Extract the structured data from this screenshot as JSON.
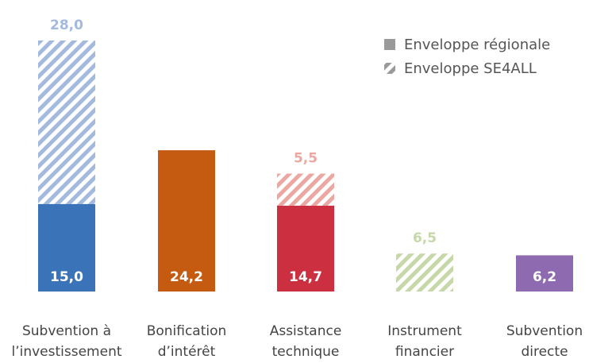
{
  "chart_data": {
    "type": "bar",
    "stacked": true,
    "categories": [
      [
        "Subvention à",
        "l’investissement"
      ],
      [
        "Bonification",
        "d’intérêt"
      ],
      [
        "Assistance",
        "technique"
      ],
      [
        "Instrument",
        "financier"
      ],
      [
        "Subvention",
        "directe"
      ]
    ],
    "series": [
      {
        "name": "Enveloppe régionale",
        "values": [
          15.0,
          24.2,
          14.7,
          null,
          6.2
        ],
        "labels": [
          "15,0",
          "24,2",
          "14,7",
          "",
          "6,2"
        ]
      },
      {
        "name": "Enveloppe SE4ALL",
        "values": [
          28.0,
          null,
          5.5,
          6.5,
          null
        ],
        "labels": [
          "28,0",
          "",
          "5,5",
          "6,5",
          ""
        ]
      }
    ],
    "colors": [
      "#3b73b9",
      "#c55a11",
      "#cc2f3f",
      "#a9c47f",
      "#8e6ab0"
    ],
    "light_colors": [
      "#a4b9de",
      "#e7b08a",
      "#eba7a1",
      "#c6d8a8",
      "#c7b6dc"
    ],
    "legend_position": "top-right",
    "grid": false,
    "ylim": [
      0,
      43
    ]
  }
}
